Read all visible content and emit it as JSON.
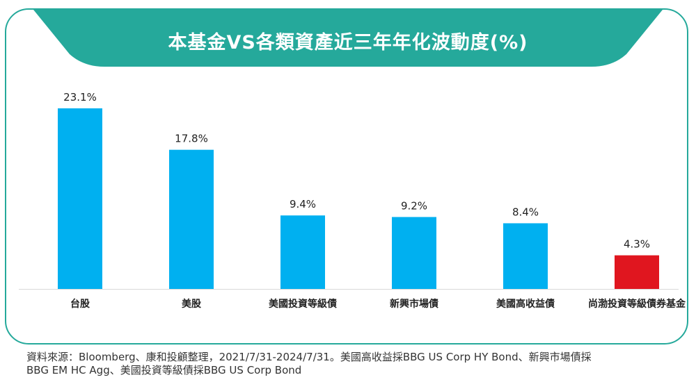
{
  "header": {
    "title": "本基金VS各類資產近三年年化波動度(%)"
  },
  "colors": {
    "accent": "#25a99b",
    "bar": "#00b0f0",
    "highlight_bar": "#e0161f"
  },
  "chart_data": {
    "type": "bar",
    "title": "本基金VS各類資產近三年年化波動度(%)",
    "categories": [
      "台股",
      "美股",
      "美國投資等級債",
      "新興市場債",
      "美國高收益債",
      "尚渤投資等級債券基金"
    ],
    "values": [
      23.1,
      17.8,
      9.4,
      9.2,
      8.4,
      4.3
    ],
    "data_labels": [
      "23.1%",
      "17.8%",
      "9.4%",
      "9.2%",
      "8.4%",
      "4.3%"
    ],
    "highlight_index": 5,
    "ylim": [
      0,
      23.1
    ],
    "grid": false,
    "legend": "none",
    "xlabel": "",
    "ylabel": ""
  },
  "footer": {
    "source_line1": "資料來源：Bloomberg、康和投顧整理，2021/7/31-2024/7/31。美國高收益採BBG US Corp HY Bond、新興市場債採",
    "source_line2": "BBG EM HC Agg、美國投資等級債採BBG US Corp Bond"
  }
}
